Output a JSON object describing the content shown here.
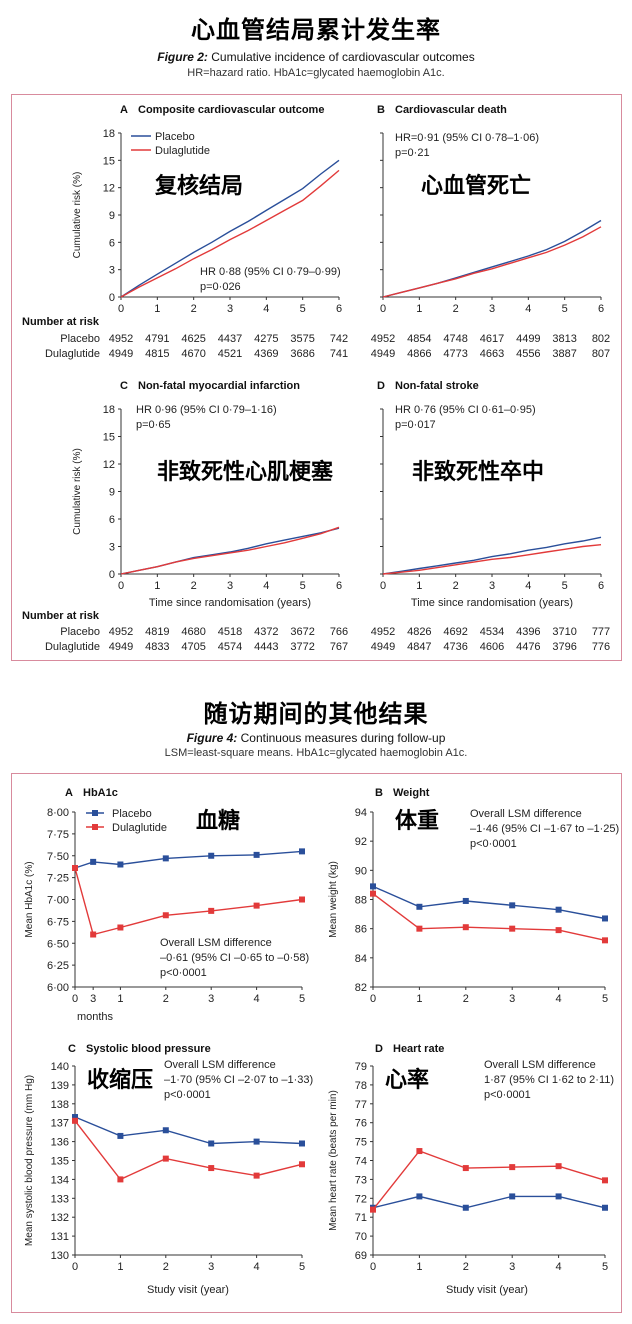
{
  "figure2": {
    "overlay_title": "心血管结局累计发生率",
    "caption_label": "Figure 2:",
    "caption_text": "Cumulative incidence of cardiovascular outcomes",
    "note": "HR=hazard ratio. HbA1c=glycated haemoglobin A1c."
  },
  "figure4": {
    "overlay_title": "随访期间的其他结果",
    "caption_label": "Figure 4:",
    "caption_text": "Continuous measures during follow-up",
    "note": "LSM=least-square means. HbA1c=glycated haemoglobin A1c."
  },
  "colors": {
    "placebo": "#2a4f9a",
    "dulaglutide": "#e23a3a",
    "frame": "#d88b9d",
    "overlay_text": "#000000"
  },
  "chart_data": [
    {
      "type": "line",
      "id": "A",
      "panel_label": "A",
      "title": "Composite cardiovascular outcome",
      "overlay": "复核结局",
      "ylabel": "Cumulative risk (%)",
      "xlabel": "",
      "xlim": [
        0,
        6
      ],
      "ylim": [
        0,
        18
      ],
      "xticks": [
        0,
        1,
        2,
        3,
        4,
        5,
        6
      ],
      "yticks": [
        0,
        3,
        6,
        9,
        12,
        15,
        18
      ],
      "legend": [
        "Placebo",
        "Dulaglutide"
      ],
      "annotation": [
        "HR 0·88 (95% CI 0·79–0·99)",
        "p=0·026"
      ],
      "series": [
        {
          "name": "Placebo",
          "x": [
            0,
            0.5,
            1,
            1.5,
            2,
            2.5,
            3,
            3.5,
            4,
            4.5,
            5,
            5.5,
            6
          ],
          "y": [
            0,
            1.3,
            2.5,
            3.7,
            4.9,
            6.0,
            7.2,
            8.3,
            9.5,
            10.7,
            11.9,
            13.5,
            15.0
          ]
        },
        {
          "name": "Dulaglutide",
          "x": [
            0,
            0.5,
            1,
            1.5,
            2,
            2.5,
            3,
            3.5,
            4,
            4.5,
            5,
            5.5,
            6
          ],
          "y": [
            0,
            1.1,
            2.1,
            3.1,
            4.2,
            5.2,
            6.3,
            7.3,
            8.4,
            9.5,
            10.6,
            12.2,
            13.9
          ]
        }
      ]
    },
    {
      "type": "line",
      "id": "B",
      "panel_label": "B",
      "title": "Cardiovascular death",
      "overlay": "心血管死亡",
      "ylabel": "",
      "xlabel": "",
      "xlim": [
        0,
        6
      ],
      "ylim": [
        0,
        18
      ],
      "xticks": [
        0,
        1,
        2,
        3,
        4,
        5,
        6
      ],
      "yticks": [],
      "annotation": [
        "HR=0·91 (95% CI 0·78–1·06)",
        "p=0·21"
      ],
      "series": [
        {
          "name": "Placebo",
          "x": [
            0,
            0.5,
            1,
            1.5,
            2,
            2.5,
            3,
            3.5,
            4,
            4.5,
            5,
            5.5,
            6
          ],
          "y": [
            0,
            0.5,
            1.0,
            1.5,
            2.1,
            2.7,
            3.3,
            3.9,
            4.5,
            5.2,
            6.1,
            7.2,
            8.4
          ]
        },
        {
          "name": "Dulaglutide",
          "x": [
            0,
            0.5,
            1,
            1.5,
            2,
            2.5,
            3,
            3.5,
            4,
            4.5,
            5,
            5.5,
            6
          ],
          "y": [
            0,
            0.5,
            1.0,
            1.5,
            2.0,
            2.6,
            3.1,
            3.7,
            4.3,
            4.9,
            5.7,
            6.6,
            7.7
          ]
        }
      ]
    },
    {
      "type": "line",
      "id": "C",
      "panel_label": "C",
      "title": "Non-fatal myocardial infarction",
      "overlay": "非致死性心肌梗塞",
      "ylabel": "Cumulative risk (%)",
      "xlabel": "Time since randomisation (years)",
      "xlim": [
        0,
        6
      ],
      "ylim": [
        0,
        18
      ],
      "xticks": [
        0,
        1,
        2,
        3,
        4,
        5,
        6
      ],
      "yticks": [
        0,
        3,
        6,
        9,
        12,
        15,
        18
      ],
      "annotation": [
        "HR 0·96 (95% CI 0·79–1·16)",
        "p=0·65"
      ],
      "series": [
        {
          "name": "Placebo",
          "x": [
            0,
            0.5,
            1,
            1.5,
            2,
            2.5,
            3,
            3.5,
            4,
            4.5,
            5,
            5.5,
            6
          ],
          "y": [
            0,
            0.4,
            0.8,
            1.3,
            1.8,
            2.1,
            2.4,
            2.8,
            3.3,
            3.7,
            4.1,
            4.5,
            5.0
          ]
        },
        {
          "name": "Dulaglutide",
          "x": [
            0,
            0.5,
            1,
            1.5,
            2,
            2.5,
            3,
            3.5,
            4,
            4.5,
            5,
            5.5,
            6
          ],
          "y": [
            0,
            0.4,
            0.8,
            1.3,
            1.7,
            2.0,
            2.3,
            2.6,
            3.0,
            3.4,
            3.9,
            4.4,
            5.1
          ]
        }
      ]
    },
    {
      "type": "line",
      "id": "D",
      "panel_label": "D",
      "title": "Non-fatal stroke",
      "overlay": "非致死性卒中",
      "ylabel": "",
      "xlabel": "Time since randomisation (years)",
      "xlim": [
        0,
        6
      ],
      "ylim": [
        0,
        18
      ],
      "xticks": [
        0,
        1,
        2,
        3,
        4,
        5,
        6
      ],
      "yticks": [],
      "annotation": [
        "HR 0·76 (95% CI 0·61–0·95)",
        "p=0·017"
      ],
      "series": [
        {
          "name": "Placebo",
          "x": [
            0,
            0.5,
            1,
            1.5,
            2,
            2.5,
            3,
            3.5,
            4,
            4.5,
            5,
            5.5,
            6
          ],
          "y": [
            0,
            0.3,
            0.6,
            0.9,
            1.2,
            1.5,
            1.9,
            2.2,
            2.6,
            2.9,
            3.3,
            3.6,
            4.0
          ]
        },
        {
          "name": "Dulaglutide",
          "x": [
            0,
            0.5,
            1,
            1.5,
            2,
            2.5,
            3,
            3.5,
            4,
            4.5,
            5,
            5.5,
            6
          ],
          "y": [
            0,
            0.2,
            0.4,
            0.7,
            1.0,
            1.3,
            1.6,
            1.8,
            2.1,
            2.4,
            2.7,
            3.0,
            3.2
          ]
        }
      ]
    },
    {
      "type": "table",
      "id": "risk-table",
      "title": "Number at risk",
      "rows": [
        {
          "group": "Placebo",
          "panelA": [
            "4952",
            "4791",
            "4625",
            "4437",
            "4275",
            "3575",
            "742"
          ],
          "panelB": [
            "4952",
            "4854",
            "4748",
            "4617",
            "4499",
            "3813",
            "802"
          ],
          "panelC": [
            "4952",
            "4819",
            "4680",
            "4518",
            "4372",
            "3672",
            "766"
          ],
          "panelD": [
            "4952",
            "4826",
            "4692",
            "4534",
            "4396",
            "3710",
            "777"
          ]
        },
        {
          "group": "Dulaglutide",
          "panelA": [
            "4949",
            "4815",
            "4670",
            "4521",
            "4369",
            "3686",
            "741"
          ],
          "panelB": [
            "4949",
            "4866",
            "4773",
            "4663",
            "4556",
            "3887",
            "807"
          ],
          "panelC": [
            "4949",
            "4833",
            "4705",
            "4574",
            "4443",
            "3772",
            "767"
          ],
          "panelD": [
            "4949",
            "4847",
            "4736",
            "4606",
            "4476",
            "3796",
            "776"
          ]
        }
      ]
    },
    {
      "type": "line",
      "id": "E",
      "panel_label": "A",
      "title": "HbA1c",
      "overlay": "血糖",
      "ylabel": "Mean HbA1c (%)",
      "xlabel": "months",
      "xlim": [
        0,
        5
      ],
      "ylim": [
        6.0,
        8.0
      ],
      "xticks": [
        "0",
        "3",
        "1",
        "2",
        "3",
        "4",
        "5"
      ],
      "yticks": [
        "6·00",
        "6·25",
        "6·50",
        "6·75",
        "7·00",
        "7·25",
        "7·50",
        "7·75",
        "8·00"
      ],
      "legend": [
        "Placebo",
        "Dulaglutide"
      ],
      "annotation": [
        "Overall LSM difference",
        "–0·61 (95% CI –0·65 to –0·58)",
        "p<0·0001"
      ],
      "series": [
        {
          "name": "Placebo",
          "x": [
            0,
            0.4,
            1,
            2,
            3,
            4,
            5
          ],
          "y": [
            7.36,
            7.43,
            7.4,
            7.47,
            7.5,
            7.51,
            7.55
          ]
        },
        {
          "name": "Dulaglutide",
          "x": [
            0,
            0.4,
            1,
            2,
            3,
            4,
            5
          ],
          "y": [
            7.36,
            6.6,
            6.68,
            6.82,
            6.87,
            6.93,
            7.0
          ]
        }
      ]
    },
    {
      "type": "line",
      "id": "F",
      "panel_label": "B",
      "title": "Weight",
      "overlay": "体重",
      "ylabel": "Mean weight (kg)",
      "xlabel": "",
      "xlim": [
        0,
        5
      ],
      "ylim": [
        82,
        94
      ],
      "xticks": [
        "0",
        "1",
        "2",
        "3",
        "4",
        "5"
      ],
      "yticks": [
        "82",
        "84",
        "86",
        "88",
        "90",
        "92",
        "94"
      ],
      "annotation": [
        "Overall LSM difference",
        "–1·46 (95% CI –1·67 to –1·25)",
        "p<0·0001"
      ],
      "series": [
        {
          "name": "Placebo",
          "x": [
            0,
            1,
            2,
            3,
            4,
            5
          ],
          "y": [
            88.9,
            87.5,
            87.9,
            87.6,
            87.3,
            86.7
          ]
        },
        {
          "name": "Dulaglutide",
          "x": [
            0,
            1,
            2,
            3,
            4,
            5
          ],
          "y": [
            88.4,
            86.0,
            86.1,
            86.0,
            85.9,
            85.2
          ]
        }
      ]
    },
    {
      "type": "line",
      "id": "G",
      "panel_label": "C",
      "title": "Systolic blood pressure",
      "overlay": "收缩压",
      "ylabel": "Mean systolic blood pressure (mm Hg)",
      "xlabel": "Study visit (year)",
      "xlim": [
        0,
        5
      ],
      "ylim": [
        130,
        140
      ],
      "xticks": [
        "0",
        "1",
        "2",
        "3",
        "4",
        "5"
      ],
      "yticks": [
        "130",
        "131",
        "132",
        "133",
        "134",
        "135",
        "136",
        "137",
        "138",
        "139",
        "140"
      ],
      "annotation": [
        "Overall LSM difference",
        "–1·70 (95% CI –2·07 to –1·33)",
        "p<0·0001"
      ],
      "series": [
        {
          "name": "Placebo",
          "x": [
            0,
            1,
            2,
            3,
            4,
            5
          ],
          "y": [
            137.3,
            136.3,
            136.6,
            135.9,
            136.0,
            135.9
          ]
        },
        {
          "name": "Dulaglutide",
          "x": [
            0,
            1,
            2,
            3,
            4,
            5
          ],
          "y": [
            137.1,
            134.0,
            135.1,
            134.6,
            134.2,
            134.8
          ]
        }
      ]
    },
    {
      "type": "line",
      "id": "H",
      "panel_label": "D",
      "title": "Heart rate",
      "overlay": "心率",
      "ylabel": "Mean heart rate (beats per min)",
      "xlabel": "Study visit (year)",
      "xlim": [
        0,
        5
      ],
      "ylim": [
        69,
        79
      ],
      "xticks": [
        "0",
        "1",
        "2",
        "3",
        "4",
        "5"
      ],
      "yticks": [
        "69",
        "70",
        "71",
        "72",
        "73",
        "74",
        "75",
        "76",
        "77",
        "78",
        "79"
      ],
      "annotation": [
        "Overall LSM difference",
        "1·87 (95% CI 1·62 to 2·11)",
        "p<0·0001"
      ],
      "series": [
        {
          "name": "Placebo",
          "x": [
            0,
            1,
            2,
            3,
            4,
            5
          ],
          "y": [
            71.5,
            72.1,
            71.5,
            72.1,
            72.1,
            71.5
          ]
        },
        {
          "name": "Dulaglutide",
          "x": [
            0,
            1,
            2,
            3,
            4,
            5
          ],
          "y": [
            71.4,
            74.5,
            73.6,
            73.65,
            73.7,
            72.95
          ]
        }
      ]
    }
  ]
}
